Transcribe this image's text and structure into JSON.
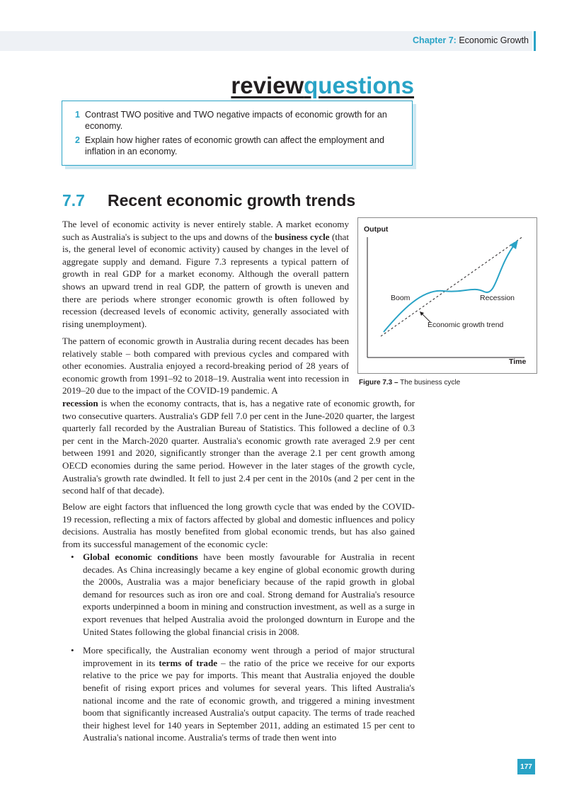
{
  "header": {
    "chapter_label": "Chapter 7:",
    "chapter_title": "Economic Growth"
  },
  "review": {
    "title_part1": "review",
    "title_part2": "questions",
    "questions": [
      {
        "num": "1",
        "text": "Contrast TWO positive and TWO negative impacts of economic growth for an economy."
      },
      {
        "num": "2",
        "text": "Explain how higher rates of economic growth can affect the employment and inflation in an economy."
      }
    ]
  },
  "section": {
    "number": "7.7",
    "title": "Recent economic growth trends"
  },
  "paragraphs": {
    "p1_a": "The level of economic activity is never entirely stable. A market economy such as Australia's is subject to the ups and downs of the ",
    "p1_bold": "business cycle",
    "p1_b": " (that is, the general level of economic activity) caused by changes in the level of aggregate supply and demand. Figure 7.3 represents a typical pattern of growth in real GDP for a market economy. Although the overall pattern shows an upward trend in real GDP, the pattern of growth is uneven and there are periods where stronger economic growth is often followed by recession (decreased levels of economic activity, generally associated with rising unemployment).",
    "p2_a": "The pattern of economic growth in Australia during recent decades has been relatively stable – both compared with previous cycles and compared with other economies. Australia enjoyed a record-breaking period of 28 years of economic growth from 1991–92 to 2018–19. Australia went into recession in 2019–20 due to the impact of the COVID-19 pandemic. A",
    "p2_bold": "recession",
    "p2_b": " is when the economy contracts, that is, has a negative rate of economic growth, for two consecutive quarters. Australia's GDP fell 7.0 per cent in the June-2020 quarter, the largest quarterly fall recorded by the Australian Bureau of Statistics. This followed a decline of 0.3 per cent in the March-2020 quarter. Australia's economic growth rate averaged 2.9 per cent between 1991 and 2020, significantly stronger than the average 2.1 per cent growth among OECD economies during the same period. However in the later stages of the growth cycle, Australia's growth rate dwindled. It fell to just 2.4 per cent in the 2010s (and 2 per cent in the second half of that decade).",
    "p3": "Below are eight factors that influenced the long growth cycle that was ended by the COVID-19 recession, reflecting a mix of factors affected by global and domestic influences and policy decisions. Australia has mostly benefited from global economic trends, but has also gained from its successful management of the economic cycle:"
  },
  "bullets": [
    {
      "bold": "Global economic conditions",
      "text": " have been mostly favourable for Australia in recent decades. As China increasingly became a key engine of global economic growth during the 2000s, Australia was a major beneficiary because of the rapid growth in global demand for resources such as iron ore and coal. Strong demand for Australia's resource exports underpinned a boom in mining and construction investment, as well as a surge in export revenues that helped Australia avoid the prolonged downturn in Europe and the United States following the global financial crisis in 2008."
    },
    {
      "pre": "More specifically, the Australian economy went through a period of major structural improvement in its ",
      "bold": "terms of trade",
      "text": " – the ratio of the price we receive for our exports relative to the price we pay for imports. This meant that Australia enjoyed the double benefit of rising export prices and volumes for several years. This lifted Australia's national income and the rate of economic growth, and triggered a mining investment boom that significantly increased Australia's output capacity. The terms of trade reached their highest level for 140 years in September 2011, adding an estimated 15 per cent to Australia's national income. Australia's terms of trade then went into"
    }
  ],
  "figure": {
    "y_label": "Output",
    "x_label": "Time",
    "boom_label": "Boom",
    "recession_label": "Recession",
    "trend_label": "Economic growth trend",
    "caption_bold": "Figure 7.3 –",
    "caption_text": " The business cycle",
    "colors": {
      "curve": "#29a3c6",
      "trend": "#231f20"
    }
  },
  "page_number": "177",
  "colors": {
    "accent": "#29a3c6",
    "header_bg": "#eef1f5"
  }
}
